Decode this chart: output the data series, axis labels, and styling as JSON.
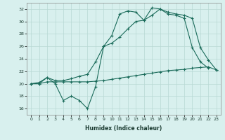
{
  "xlabel": "Humidex (Indice chaleur)",
  "x_values": [
    0,
    1,
    2,
    3,
    4,
    5,
    6,
    7,
    8,
    9,
    10,
    11,
    12,
    13,
    14,
    15,
    16,
    17,
    18,
    19,
    20,
    21,
    22,
    23
  ],
  "line_zigzag": [
    20.0,
    20.0,
    21.0,
    20.0,
    17.3,
    18.0,
    17.3,
    16.0,
    19.5,
    26.0,
    27.7,
    31.2,
    31.7,
    31.5,
    30.2,
    32.2,
    32.0,
    31.2,
    31.0,
    30.5,
    25.8,
    23.5,
    22.5,
    null
  ],
  "line_upper": [
    20.0,
    20.2,
    21.0,
    20.5,
    20.5,
    20.8,
    21.2,
    21.5,
    23.5,
    26.0,
    26.5,
    27.5,
    28.8,
    30.0,
    30.2,
    31.0,
    32.0,
    31.5,
    31.2,
    31.0,
    30.5,
    25.8,
    23.8,
    22.2
  ],
  "line_flat": [
    20.0,
    20.0,
    20.3,
    20.3,
    20.3,
    20.3,
    20.3,
    20.3,
    20.4,
    20.5,
    20.7,
    20.9,
    21.1,
    21.3,
    21.5,
    21.7,
    21.9,
    22.1,
    22.2,
    22.3,
    22.5,
    22.6,
    22.7,
    22.2
  ],
  "line_color": "#1a6b5a",
  "bg_color": "#d8f0ee",
  "grid_color": "#b8d8d4",
  "ylim": [
    15,
    33
  ],
  "yticks": [
    16,
    18,
    20,
    22,
    24,
    26,
    28,
    30,
    32
  ],
  "xlim": [
    -0.5,
    23.5
  ],
  "xticks": [
    0,
    1,
    2,
    3,
    4,
    5,
    6,
    7,
    8,
    9,
    10,
    11,
    12,
    13,
    14,
    15,
    16,
    17,
    18,
    19,
    20,
    21,
    22,
    23
  ]
}
